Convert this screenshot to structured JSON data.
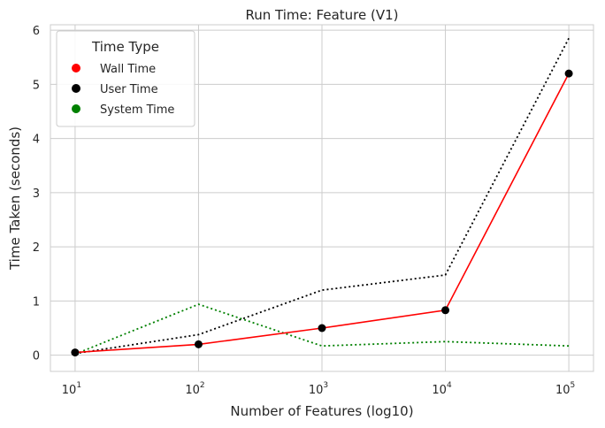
{
  "chart_data": {
    "type": "line",
    "title": "Run Time: Feature (V1)",
    "xlabel": "Number of Features (log10)",
    "ylabel": "Time Taken (seconds)",
    "x_scale": "log",
    "x": [
      10,
      100,
      1000,
      10000,
      100000
    ],
    "x_tick_labels": [
      {
        "base": "10",
        "exp": "1"
      },
      {
        "base": "10",
        "exp": "2"
      },
      {
        "base": "10",
        "exp": "3"
      },
      {
        "base": "10",
        "exp": "4"
      },
      {
        "base": "10",
        "exp": "5"
      }
    ],
    "ylim": [
      -0.3,
      6.1
    ],
    "y_ticks": [
      0,
      1,
      2,
      3,
      4,
      5,
      6
    ],
    "grid": true,
    "legend": {
      "title": "Time Type",
      "placement": "top-left",
      "entries": [
        {
          "label": "Wall Time",
          "color": "#ff0000"
        },
        {
          "label": "User Time",
          "color": "#000000"
        },
        {
          "label": "System Time",
          "color": "#008000"
        }
      ]
    },
    "series": [
      {
        "name": "Wall Time",
        "color": "#ff0000",
        "style": "solid",
        "markers": true,
        "values": [
          0.05,
          0.2,
          0.5,
          0.83,
          5.2
        ]
      },
      {
        "name": "User Time",
        "color": "#000000",
        "style": "dotted",
        "markers": false,
        "values": [
          0.03,
          0.38,
          1.2,
          1.48,
          5.85
        ]
      },
      {
        "name": "System Time",
        "color": "#008000",
        "style": "dotted",
        "markers": false,
        "values": [
          0.02,
          0.94,
          0.17,
          0.25,
          0.17
        ]
      }
    ]
  }
}
